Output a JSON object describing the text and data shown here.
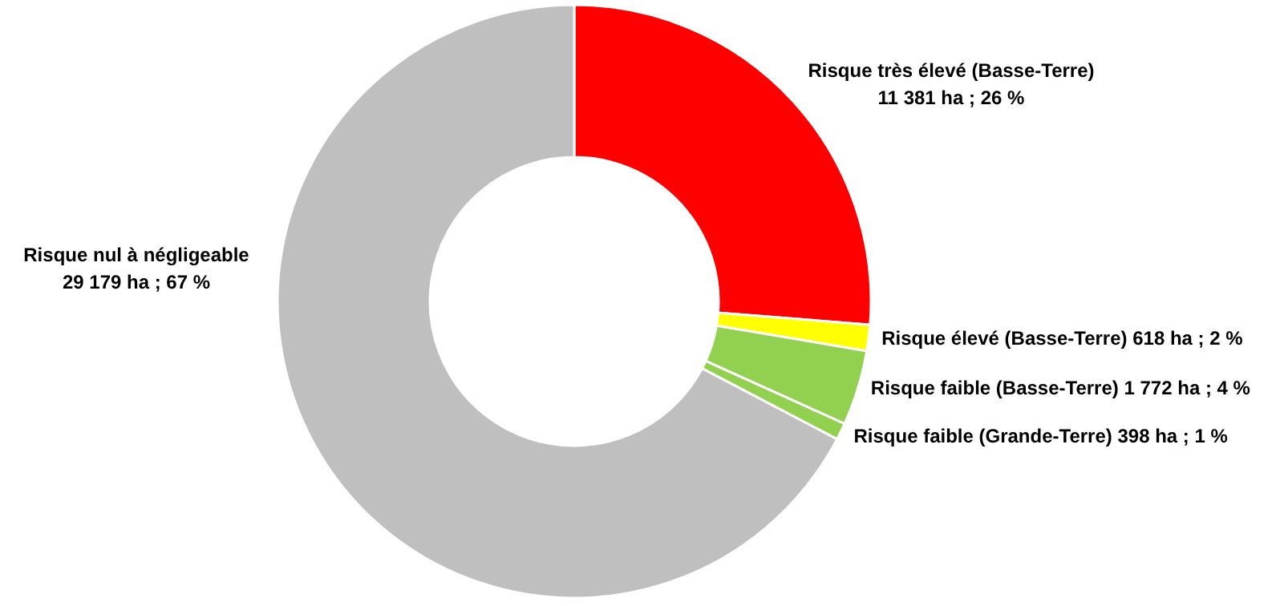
{
  "chart_data": {
    "type": "donut",
    "categories": [
      "Risque très élevé (Basse-Terre)",
      "Risque élevé (Basse-Terre)",
      "Risque faible (Basse-Terre)",
      "Risque faible (Grande-Terre)",
      "Risque nul à négligeable"
    ],
    "values": [
      11381,
      618,
      1772,
      398,
      29179
    ],
    "colors": [
      "#ff0000",
      "#ffff00",
      "#92d050",
      "#92d050",
      "#bfbfbf"
    ],
    "value_labels": [
      "11 381 ha ; 26 %",
      "618 ha ; 2 %",
      "1 772 ha ; 4 %",
      "398 ha ; 1 %",
      "29 179 ha ; 67 %"
    ]
  }
}
